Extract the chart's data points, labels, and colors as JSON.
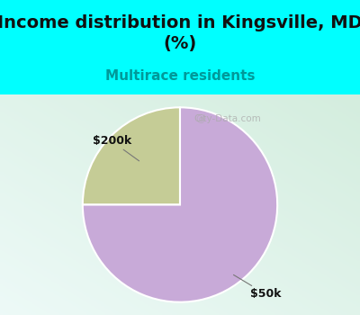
{
  "title": "Income distribution in Kingsville, MD\n(%)",
  "subtitle": "Multirace residents",
  "title_fontsize": 14,
  "subtitle_fontsize": 11,
  "subtitle_color": "#009999",
  "slices": [
    0.25,
    0.75
  ],
  "slice_colors": [
    "#c5cc96",
    "#c8aad8"
  ],
  "slice_labels": [
    "$200k",
    "$50k"
  ],
  "bg_top_color": "#00ffff",
  "watermark": "City-Data.com",
  "startangle": 90,
  "wedge_edgecolor": "#ffffff",
  "wedge_linewidth": 1.5,
  "chart_bg_left": "#c8ecd0",
  "chart_bg_right": "#e8f8f0"
}
